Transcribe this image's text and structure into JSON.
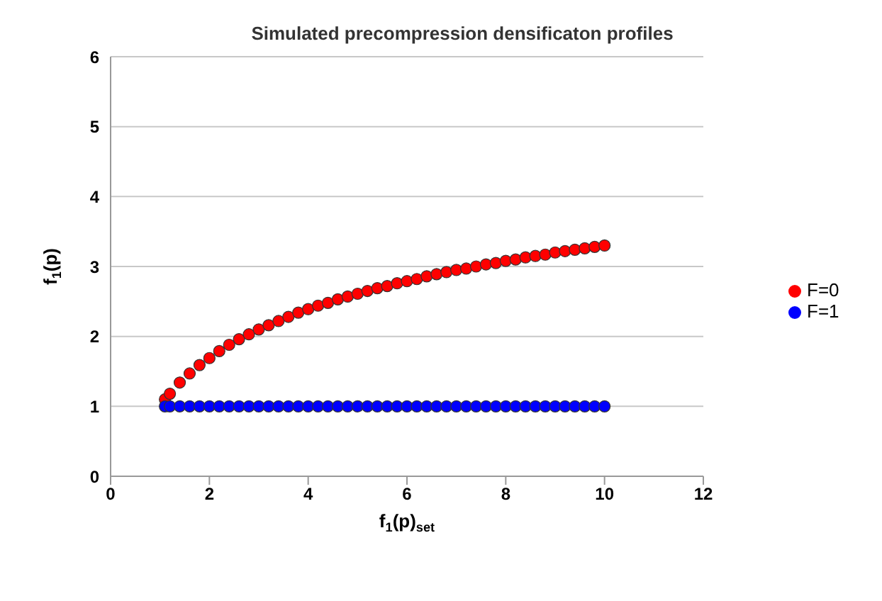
{
  "chart_data": {
    "type": "scatter",
    "title": "Simulated precompression densificaton profiles",
    "xlabel": "f$_{1}$(p)$_{set}$",
    "ylabel": "f$_{1}$(p)",
    "x": [
      1.1,
      1.2,
      1.4,
      1.6,
      1.8,
      2.0,
      2.2,
      2.4,
      2.6,
      2.8,
      3.0,
      3.2,
      3.4,
      3.6,
      3.8,
      4.0,
      4.2,
      4.4,
      4.6,
      4.8,
      5.0,
      5.2,
      5.4,
      5.6,
      5.8,
      6.0,
      6.2,
      6.4,
      6.6,
      6.8,
      7.0,
      7.2,
      7.4,
      7.6,
      7.8,
      8.0,
      8.2,
      8.4,
      8.6,
      8.8,
      9.0,
      9.2,
      9.4,
      9.6,
      9.8,
      10.0
    ],
    "series": [
      {
        "name": "F=0",
        "color": "#ff0000",
        "values": [
          1.1,
          1.18,
          1.34,
          1.47,
          1.59,
          1.69,
          1.79,
          1.88,
          1.96,
          2.03,
          2.1,
          2.16,
          2.22,
          2.28,
          2.34,
          2.39,
          2.44,
          2.48,
          2.53,
          2.57,
          2.61,
          2.65,
          2.69,
          2.72,
          2.76,
          2.79,
          2.82,
          2.86,
          2.89,
          2.92,
          2.95,
          2.97,
          3.0,
          3.03,
          3.05,
          3.08,
          3.1,
          3.13,
          3.15,
          3.17,
          3.2,
          3.22,
          3.24,
          3.26,
          3.28,
          3.3
        ]
      },
      {
        "name": "F=1",
        "color": "#0000ff",
        "values": [
          1,
          1,
          1,
          1,
          1,
          1,
          1,
          1,
          1,
          1,
          1,
          1,
          1,
          1,
          1,
          1,
          1,
          1,
          1,
          1,
          1,
          1,
          1,
          1,
          1,
          1,
          1,
          1,
          1,
          1,
          1,
          1,
          1,
          1,
          1,
          1,
          1,
          1,
          1,
          1,
          1,
          1,
          1,
          1,
          1,
          1
        ]
      }
    ],
    "xlim": [
      0,
      12
    ],
    "xticks": [
      0,
      2,
      4,
      6,
      8,
      10,
      12
    ],
    "ylim": [
      0,
      6
    ],
    "yticks": [
      0,
      1,
      2,
      3,
      4,
      5,
      6
    ],
    "grid": "y",
    "legend": "right",
    "marker": "circle"
  }
}
